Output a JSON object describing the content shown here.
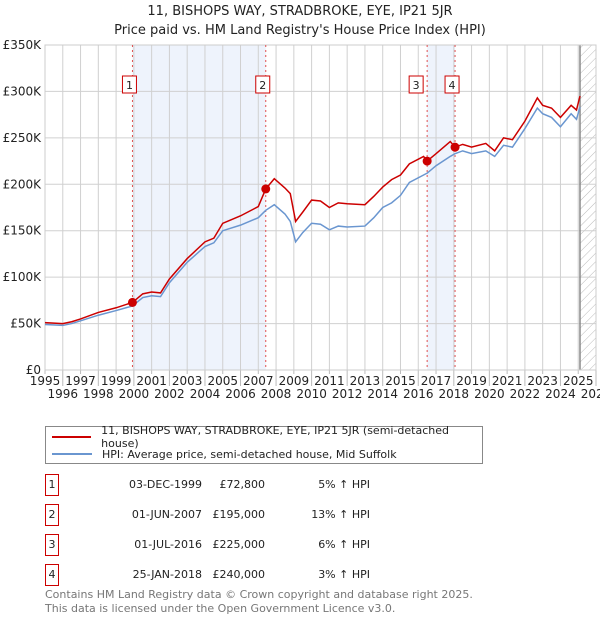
{
  "title": "11, BISHOPS WAY, STRADBROKE, EYE, IP21 5JR",
  "subtitle": "Price paid vs. HM Land Registry's House Price Index (HPI)",
  "colors": {
    "property": "#cc0000",
    "hpi": "#6a96d0",
    "shade": "#eef3fc"
  },
  "chart_data": {
    "type": "line",
    "xlim": [
      1995,
      2026
    ],
    "ylim": [
      0,
      350000
    ],
    "x_ticks": [
      "1995",
      "1996",
      "1997",
      "1998",
      "1999",
      "2000",
      "2001",
      "2002",
      "2003",
      "2004",
      "2005",
      "2006",
      "2007",
      "2008",
      "2009",
      "2010",
      "2011",
      "2012",
      "2013",
      "2014",
      "2015",
      "2016",
      "2017",
      "2018",
      "2019",
      "2020",
      "2021",
      "2022",
      "2023",
      "2024",
      "2025",
      "2026"
    ],
    "y_ticks": [
      {
        "v": 0,
        "label": "£0"
      },
      {
        "v": 50000,
        "label": "£50K"
      },
      {
        "v": 100000,
        "label": "£100K"
      },
      {
        "v": 150000,
        "label": "£150K"
      },
      {
        "v": 200000,
        "label": "£200K"
      },
      {
        "v": 250000,
        "label": "£250K"
      },
      {
        "v": 300000,
        "label": "£300K"
      },
      {
        "v": 350000,
        "label": "£350K"
      }
    ],
    "forecast_start": 2025.1,
    "shaded_ranges": [
      [
        1999.92,
        2007.42
      ],
      [
        2016.5,
        2018.07
      ]
    ],
    "series": [
      {
        "name": "11, BISHOPS WAY, STRADBROKE, EYE, IP21 5JR (semi-detached house)",
        "points": [
          [
            1995,
            51000
          ],
          [
            1996,
            50000
          ],
          [
            1996.5,
            52000
          ],
          [
            1997,
            55000
          ],
          [
            1998,
            62000
          ],
          [
            1999,
            67000
          ],
          [
            1999.92,
            72800
          ],
          [
            2000.5,
            82000
          ],
          [
            2001,
            84000
          ],
          [
            2001.5,
            83000
          ],
          [
            2002,
            98000
          ],
          [
            2003,
            120000
          ],
          [
            2004,
            138000
          ],
          [
            2004.5,
            142000
          ],
          [
            2005,
            158000
          ],
          [
            2006,
            166000
          ],
          [
            2007,
            176000
          ],
          [
            2007.42,
            195000
          ],
          [
            2007.9,
            206000
          ],
          [
            2008.5,
            196000
          ],
          [
            2008.8,
            190000
          ],
          [
            2009.1,
            160000
          ],
          [
            2009.5,
            170000
          ],
          [
            2010,
            183000
          ],
          [
            2010.5,
            182000
          ],
          [
            2011,
            175000
          ],
          [
            2011.5,
            180000
          ],
          [
            2012,
            179000
          ],
          [
            2013,
            178000
          ],
          [
            2013.5,
            187000
          ],
          [
            2014,
            197000
          ],
          [
            2014.5,
            205000
          ],
          [
            2015,
            210000
          ],
          [
            2015.5,
            222000
          ],
          [
            2016.3,
            230000
          ],
          [
            2016.5,
            225000
          ],
          [
            2017,
            233000
          ],
          [
            2017.8,
            246000
          ],
          [
            2018.07,
            240000
          ],
          [
            2018.5,
            243000
          ],
          [
            2019,
            240000
          ],
          [
            2019.8,
            244000
          ],
          [
            2020.3,
            236000
          ],
          [
            2020.8,
            250000
          ],
          [
            2021.3,
            248000
          ],
          [
            2022,
            268000
          ],
          [
            2022.7,
            293000
          ],
          [
            2023,
            285000
          ],
          [
            2023.5,
            282000
          ],
          [
            2024,
            272000
          ],
          [
            2024.6,
            285000
          ],
          [
            2024.9,
            280000
          ],
          [
            2025.1,
            295000
          ]
        ]
      },
      {
        "name": "HPI: Average price, semi-detached house, Mid Suffolk",
        "points": [
          [
            1995,
            49000
          ],
          [
            1996,
            48000
          ],
          [
            1996.5,
            50000
          ],
          [
            1997,
            53000
          ],
          [
            1998,
            59000
          ],
          [
            1999,
            64000
          ],
          [
            1999.92,
            69000
          ],
          [
            2000.5,
            78000
          ],
          [
            2001,
            80000
          ],
          [
            2001.5,
            79000
          ],
          [
            2002,
            94000
          ],
          [
            2003,
            116000
          ],
          [
            2004,
            133000
          ],
          [
            2004.5,
            137000
          ],
          [
            2005,
            150000
          ],
          [
            2006,
            156000
          ],
          [
            2007,
            164000
          ],
          [
            2007.42,
            172000
          ],
          [
            2007.9,
            178000
          ],
          [
            2008.5,
            168000
          ],
          [
            2008.8,
            160000
          ],
          [
            2009.1,
            138000
          ],
          [
            2009.5,
            148000
          ],
          [
            2010,
            158000
          ],
          [
            2010.5,
            157000
          ],
          [
            2011,
            151000
          ],
          [
            2011.5,
            155000
          ],
          [
            2012,
            154000
          ],
          [
            2013,
            155000
          ],
          [
            2013.5,
            164000
          ],
          [
            2014,
            175000
          ],
          [
            2014.5,
            180000
          ],
          [
            2015,
            188000
          ],
          [
            2015.5,
            202000
          ],
          [
            2016.3,
            210000
          ],
          [
            2016.5,
            212000
          ],
          [
            2017,
            220000
          ],
          [
            2017.8,
            230000
          ],
          [
            2018.07,
            233000
          ],
          [
            2018.5,
            236000
          ],
          [
            2019,
            233000
          ],
          [
            2019.8,
            236000
          ],
          [
            2020.3,
            230000
          ],
          [
            2020.8,
            242000
          ],
          [
            2021.3,
            240000
          ],
          [
            2022,
            260000
          ],
          [
            2022.7,
            282000
          ],
          [
            2023,
            276000
          ],
          [
            2023.5,
            272000
          ],
          [
            2024,
            262000
          ],
          [
            2024.6,
            276000
          ],
          [
            2024.9,
            270000
          ],
          [
            2025.1,
            283000
          ]
        ]
      }
    ],
    "sales": [
      {
        "n": "1",
        "x": 1999.92,
        "y": 72800
      },
      {
        "n": "2",
        "x": 2007.42,
        "y": 195000
      },
      {
        "n": "3",
        "x": 2016.5,
        "y": 225000
      },
      {
        "n": "4",
        "x": 2018.07,
        "y": 240000
      }
    ]
  },
  "legend": {
    "property": "11, BISHOPS WAY, STRADBROKE, EYE, IP21 5JR (semi-detached house)",
    "hpi": "HPI: Average price, semi-detached house, Mid Suffolk"
  },
  "transactions": [
    {
      "n": "1",
      "date": "03-DEC-1999",
      "price": "£72,800",
      "pct": "5% ↑ HPI"
    },
    {
      "n": "2",
      "date": "01-JUN-2007",
      "price": "£195,000",
      "pct": "13% ↑ HPI"
    },
    {
      "n": "3",
      "date": "01-JUL-2016",
      "price": "£225,000",
      "pct": "6% ↑ HPI"
    },
    {
      "n": "4",
      "date": "25-JAN-2018",
      "price": "£240,000",
      "pct": "3% ↑ HPI"
    }
  ],
  "footer": {
    "line1": "Contains HM Land Registry data © Crown copyright and database right 2025.",
    "line2": "This data is licensed under the Open Government Licence v3.0."
  }
}
